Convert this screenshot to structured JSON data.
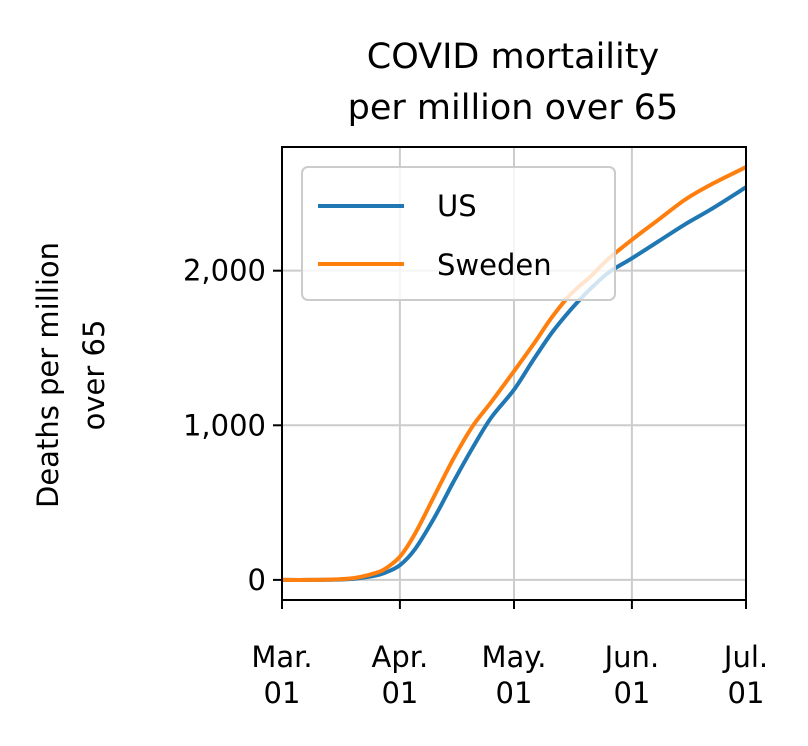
{
  "chart_data": {
    "type": "line",
    "title_lines": [
      "COVID mortaility",
      "per million over 65"
    ],
    "ylabel_lines": [
      "Deaths per million",
      "over 65"
    ],
    "xlabel": "",
    "x_ticks": [
      {
        "date": "2020-03-01",
        "line1": "Mar.",
        "line2": "01"
      },
      {
        "date": "2020-04-01",
        "line1": "Apr.",
        "line2": "01"
      },
      {
        "date": "2020-05-01",
        "line1": "May.",
        "line2": "01"
      },
      {
        "date": "2020-06-01",
        "line1": "Jun.",
        "line2": "01"
      },
      {
        "date": "2020-07-01",
        "line1": "Jul.",
        "line2": "01"
      }
    ],
    "y_ticks": [
      {
        "value": 0,
        "label": "0"
      },
      {
        "value": 1000,
        "label": "1,000"
      },
      {
        "value": 2000,
        "label": "2,000"
      }
    ],
    "xlim": [
      "2020-03-01",
      "2020-07-01"
    ],
    "ylim": [
      -130,
      2800
    ],
    "grid": true,
    "legend_position": "upper-left",
    "x": [
      "2020-03-01",
      "2020-03-08",
      "2020-03-15",
      "2020-03-20",
      "2020-03-25",
      "2020-03-28",
      "2020-04-01",
      "2020-04-05",
      "2020-04-10",
      "2020-04-15",
      "2020-04-20",
      "2020-04-25",
      "2020-05-01",
      "2020-05-06",
      "2020-05-11",
      "2020-05-16",
      "2020-05-21",
      "2020-05-26",
      "2020-06-01",
      "2020-06-08",
      "2020-06-15",
      "2020-06-22",
      "2020-07-01"
    ],
    "series": [
      {
        "name": "US",
        "color": "#1f77b4",
        "values": [
          0,
          0,
          2,
          8,
          25,
          45,
          95,
          200,
          400,
          630,
          850,
          1050,
          1230,
          1420,
          1600,
          1750,
          1880,
          1990,
          2080,
          2190,
          2300,
          2400,
          2540
        ]
      },
      {
        "name": "Sweden",
        "color": "#ff7f0e",
        "values": [
          0,
          0,
          3,
          12,
          40,
          70,
          150,
          300,
          540,
          780,
          990,
          1150,
          1350,
          1520,
          1700,
          1850,
          1960,
          2080,
          2200,
          2330,
          2460,
          2560,
          2670
        ]
      }
    ]
  }
}
